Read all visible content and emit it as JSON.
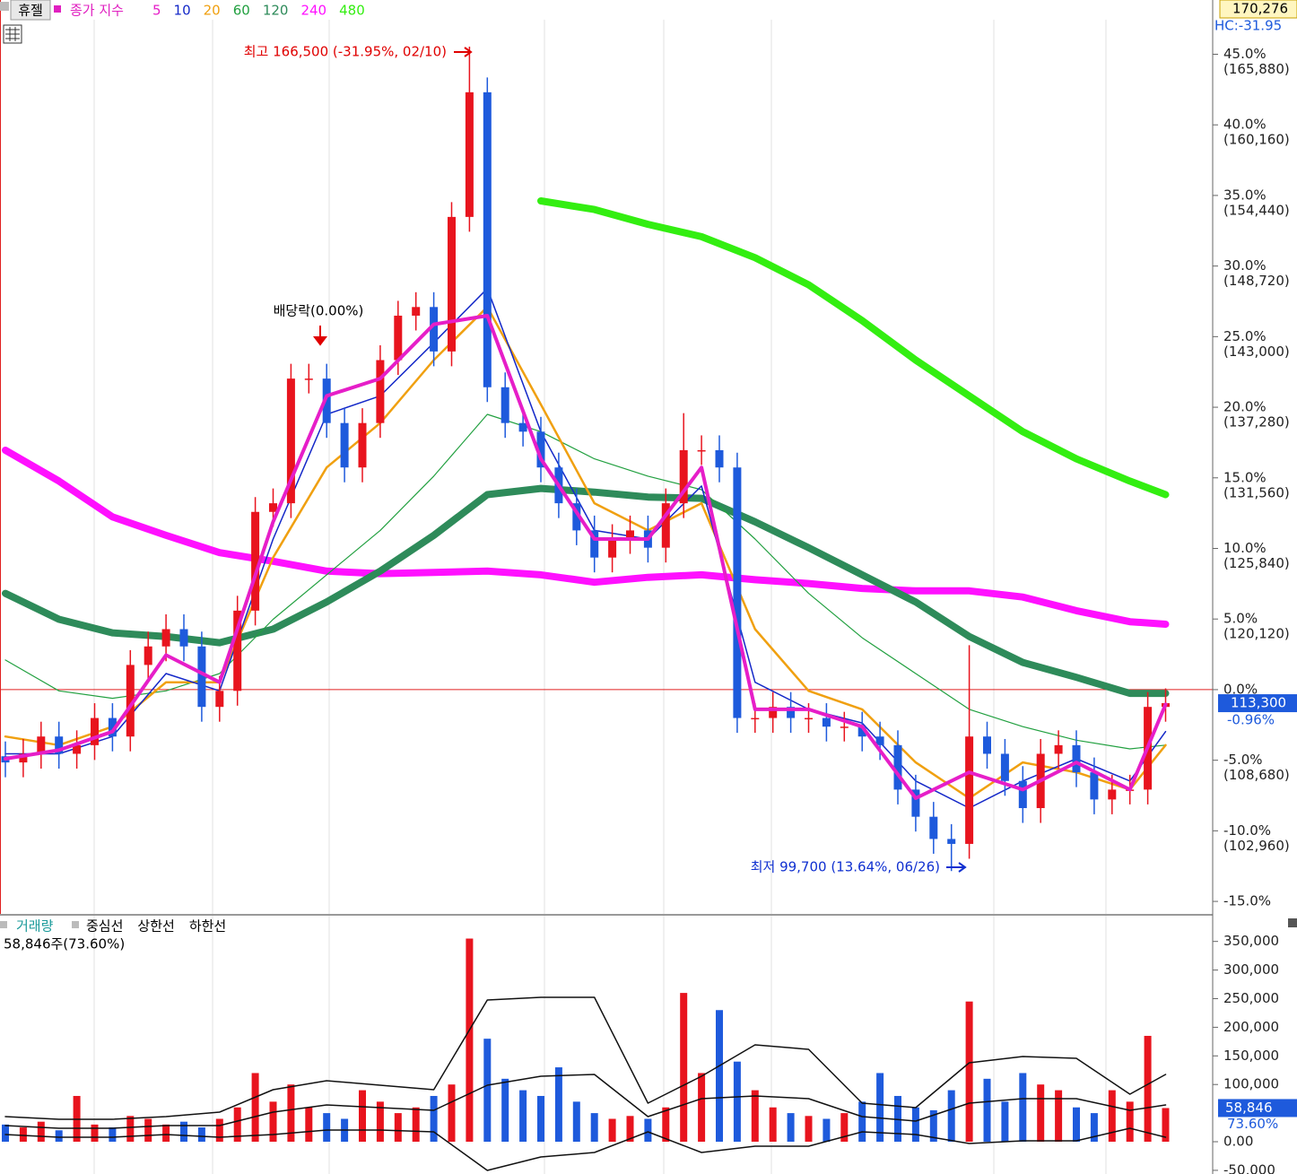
{
  "chart_data": {
    "type": "candlestick",
    "title": "휴젤",
    "legend_prefix": "종가 지수",
    "top_label": "170,276",
    "hc_label": "HC:-31.95",
    "ylim": [
      96300,
      170276
    ],
    "yticks": [
      {
        "value": 165880,
        "label": "45.0%",
        "price_label": "(165,880)"
      },
      {
        "value": 160160,
        "label": "40.0%",
        "price_label": "(160,160)"
      },
      {
        "value": 154440,
        "label": "35.0%",
        "price_label": "(154,440)"
      },
      {
        "value": 148720,
        "label": "30.0%",
        "price_label": "(148,720)"
      },
      {
        "value": 143000,
        "label": "25.0%",
        "price_label": "(143,000)"
      },
      {
        "value": 137280,
        "label": "20.0%",
        "price_label": "(137,280)"
      },
      {
        "value": 131560,
        "label": "15.0%",
        "price_label": "(131,560)"
      },
      {
        "value": 125840,
        "label": "10.0%",
        "price_label": "(125,840)"
      },
      {
        "value": 120120,
        "label": "5.0%",
        "price_label": "(120,120)"
      },
      {
        "value": 114400,
        "label": "0.0%"
      },
      {
        "value": 108680,
        "label": "-5.0%",
        "price_label": "(108,680)"
      },
      {
        "value": 102960,
        "label": "-10.0%",
        "price_label": "(102,960)"
      },
      {
        "value": 97240,
        "label": "-15.0%"
      }
    ],
    "up_color": "#e8141e",
    "down_color": "#1e5adc",
    "open": [
      109000,
      108500,
      109200,
      110600,
      109200,
      109900,
      112100,
      110600,
      116400,
      117900,
      119300,
      117900,
      113000,
      114300,
      120800,
      128800,
      129500,
      139600,
      139600,
      136000,
      132400,
      136000,
      141100,
      144700,
      145400,
      141800,
      152700,
      162800,
      138900,
      136000,
      135300,
      132400,
      129500,
      127300,
      125100,
      126600,
      127300,
      125900,
      129500,
      133800,
      133800,
      132400,
      112100,
      112100,
      113000,
      112100,
      112100,
      111400,
      111400,
      110600,
      109900,
      106300,
      104100,
      102300,
      101900,
      110600,
      109200,
      107000,
      104800,
      109200,
      109900,
      107700,
      105500,
      106300,
      106300,
      113000
    ],
    "high": [
      110200,
      110400,
      111800,
      111800,
      111100,
      113300,
      113300,
      117600,
      119100,
      120500,
      120500,
      119100,
      115500,
      122000,
      130000,
      130700,
      140800,
      140800,
      140800,
      137200,
      137200,
      142300,
      145900,
      146600,
      146600,
      153900,
      166500,
      164000,
      140100,
      137200,
      136500,
      133600,
      130700,
      128500,
      127800,
      128500,
      128500,
      130700,
      136800,
      135000,
      135000,
      133600,
      113300,
      114200,
      114200,
      113300,
      113300,
      112600,
      112600,
      111800,
      111100,
      107500,
      105300,
      103500,
      118000,
      111800,
      110400,
      108200,
      110400,
      111100,
      111100,
      108900,
      107500,
      107500,
      114200,
      114500
    ],
    "low": [
      107300,
      107300,
      108000,
      108000,
      108000,
      108700,
      109400,
      109400,
      115200,
      116700,
      116700,
      111800,
      111800,
      113100,
      119600,
      127600,
      128300,
      138400,
      134800,
      131200,
      131200,
      134800,
      139900,
      143500,
      140600,
      140600,
      151500,
      137700,
      134800,
      134100,
      131200,
      128300,
      126100,
      123900,
      123900,
      125400,
      124700,
      124700,
      128300,
      132600,
      131200,
      110900,
      110900,
      110900,
      110900,
      110900,
      110200,
      110200,
      109400,
      108700,
      105100,
      102900,
      101100,
      99700,
      100700,
      108000,
      105800,
      103600,
      103600,
      108000,
      106500,
      104300,
      104300,
      105100,
      105100,
      111800
    ],
    "close": [
      108500,
      109200,
      110600,
      109200,
      109900,
      112100,
      110600,
      116400,
      117900,
      119300,
      117900,
      113000,
      114300,
      120800,
      128800,
      129500,
      139600,
      139600,
      136000,
      132400,
      136000,
      141100,
      144700,
      145400,
      141800,
      152700,
      162800,
      138900,
      136000,
      135300,
      132400,
      129500,
      127300,
      125100,
      126600,
      127300,
      125900,
      129500,
      133800,
      133800,
      132400,
      112100,
      112100,
      113000,
      112100,
      112100,
      111400,
      111400,
      110600,
      109900,
      106300,
      104100,
      102300,
      101900,
      110600,
      109200,
      107000,
      104800,
      109200,
      109900,
      107700,
      105500,
      106300,
      106300,
      113000,
      113300
    ],
    "ma_x": [
      0,
      3,
      6,
      9,
      12,
      15,
      18,
      21,
      24,
      27,
      30,
      33,
      36,
      39,
      42,
      45,
      48,
      51,
      54,
      57,
      60,
      63,
      65
    ],
    "series": [
      {
        "name": "5",
        "color": "#e61ec8",
        "width": 4,
        "values": [
          108800,
          109500,
          111000,
          117200,
          115000,
          128000,
          138200,
          139600,
          144000,
          144700,
          133100,
          126600,
          126600,
          132400,
          112800,
          112800,
          111400,
          105600,
          107700,
          106300,
          108500,
          106300,
          113200
        ]
      },
      {
        "name": "10",
        "color": "#1428c8",
        "width": 1.5,
        "values": [
          109200,
          109200,
          110600,
          115700,
          114300,
          126600,
          136700,
          138200,
          142500,
          146900,
          135300,
          127300,
          126600,
          130900,
          115000,
          112800,
          111700,
          107000,
          104800,
          107000,
          108800,
          107000,
          111000
        ]
      },
      {
        "name": "20",
        "color": "#f0a010",
        "width": 2.5,
        "values": [
          110600,
          109900,
          111400,
          115000,
          115000,
          125100,
          132400,
          136000,
          141100,
          145400,
          137500,
          129500,
          127300,
          129500,
          119300,
          114300,
          112800,
          108500,
          105600,
          108500,
          107700,
          106300,
          109900
        ]
      },
      {
        "name": "60",
        "color": "#22a040",
        "width": 1.2,
        "values": [
          116800,
          114300,
          113700,
          114300,
          115700,
          120100,
          123700,
          127300,
          131700,
          136700,
          135300,
          133100,
          131700,
          130600,
          126600,
          122200,
          118600,
          115700,
          112800,
          111400,
          110300,
          109600,
          109900
        ]
      },
      {
        "name": "120",
        "color": "#2e8b5a",
        "width": 8,
        "values": [
          122200,
          120100,
          119000,
          118700,
          118200,
          119300,
          121500,
          124000,
          126900,
          130200,
          130700,
          130400,
          130000,
          129900,
          128000,
          125900,
          123700,
          121500,
          118700,
          116600,
          115400,
          114100,
          114100
        ]
      },
      {
        "name": "240",
        "color": "#ff10ff",
        "width": 8,
        "values": [
          133800,
          131300,
          128400,
          126900,
          125500,
          124800,
          124000,
          123800,
          123900,
          124000,
          123700,
          123100,
          123500,
          123700,
          123300,
          123000,
          122600,
          122400,
          122400,
          121900,
          120800,
          119900,
          119700
        ]
      },
      {
        "name": "480",
        "color": "#33ee11",
        "width": 8,
        "values": [
          null,
          null,
          null,
          null,
          null,
          null,
          null,
          null,
          null,
          null,
          154000,
          153300,
          152100,
          151100,
          149400,
          147200,
          144300,
          141100,
          138200,
          135300,
          133100,
          131300,
          130200
        ]
      }
    ],
    "current": {
      "value": 113300,
      "label": "113,300",
      "change": "-0.96%"
    },
    "annotations": {
      "high": "최고 166,500 (-31.95%, 02/10)",
      "dividend": "배당락(0.00%)",
      "low": "최저 99,700 (13.64%, 06/26)"
    },
    "volume_panel": {
      "title": "거래량",
      "info": "58,846주(73.60%)",
      "ylim": [
        -56400,
        393400
      ],
      "yticks": [
        {
          "value": 350000,
          "label": "350,000"
        },
        {
          "value": 300000,
          "label": "300,000"
        },
        {
          "value": 250000,
          "label": "250,000"
        },
        {
          "value": 200000,
          "label": "200,000"
        },
        {
          "value": 150000,
          "label": "150,000"
        },
        {
          "value": 100000,
          "label": "100,000"
        },
        {
          "value": 0,
          "label": "0.00"
        },
        {
          "value": -50000,
          "label": "-50,000"
        }
      ],
      "values": [
        30000,
        25000,
        35000,
        20000,
        80000,
        30000,
        25000,
        45000,
        40000,
        30000,
        35000,
        25000,
        40000,
        60000,
        120000,
        70000,
        100000,
        60000,
        50000,
        40000,
        90000,
        70000,
        50000,
        60000,
        80000,
        100000,
        355000,
        180000,
        110000,
        90000,
        80000,
        130000,
        70000,
        50000,
        40000,
        45000,
        40000,
        60000,
        260000,
        120000,
        230000,
        140000,
        90000,
        60000,
        50000,
        45000,
        40000,
        50000,
        70000,
        120000,
        80000,
        60000,
        55000,
        90000,
        245000,
        110000,
        70000,
        120000,
        100000,
        90000,
        60000,
        50000,
        90000,
        70000,
        185000,
        58846
      ],
      "bands": [
        {
          "name": "중심선",
          "color": "#111",
          "values": [
            28200,
            23500,
            23500,
            28200,
            28200,
            51700,
            64300,
            59600,
            54900,
            98700,
            114400,
            117600,
            43900,
            75200,
            79900,
            75200,
            43900,
            36100,
            67400,
            75200,
            75200,
            54900,
            64300
          ]
        },
        {
          "name": "상한선",
          "color": "#111",
          "values": [
            43900,
            39200,
            39200,
            43900,
            51700,
            90900,
            106600,
            98700,
            90900,
            247700,
            252400,
            252400,
            67400,
            114400,
            169300,
            161500,
            67400,
            59600,
            137900,
            148900,
            145800,
            83100,
            117600
          ]
        },
        {
          "name": "하한선",
          "color": "#111",
          "values": [
            12500,
            7800,
            7800,
            12500,
            7800,
            12500,
            20400,
            20400,
            17200,
            -50200,
            -26600,
            -18800,
            17200,
            -18800,
            -7800,
            -7800,
            17200,
            12500,
            -3100,
            1600,
            1600,
            23500,
            7800
          ]
        }
      ],
      "last": {
        "value": 58846,
        "label": "58,846",
        "pct": "73.60%"
      }
    }
  }
}
